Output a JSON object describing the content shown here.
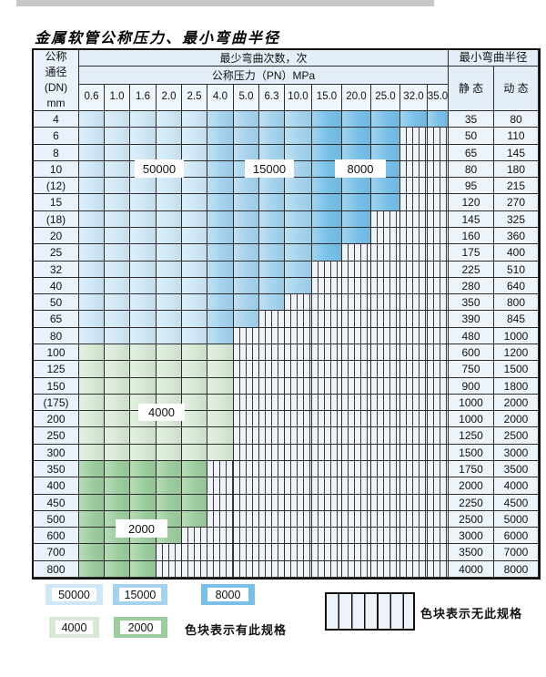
{
  "title": "金属软管公称压力、最小弯曲半径",
  "header": {
    "dn_lines": [
      "公称",
      "通径",
      "(DN)",
      "mm"
    ],
    "cycles_title": "最少弯曲次数，次",
    "pressure_title": "公称压力（PN）MPa",
    "radius_title": "最小弯曲半径",
    "static_label": "静 态",
    "dynamic_label": "动 态"
  },
  "columns": [
    "0.6",
    "1.0",
    "1.6",
    "2.0",
    "2.5",
    "4.0",
    "5.0",
    "6.3",
    "10.0",
    "15.0",
    "20.0",
    "25.0",
    "32.0",
    "35.0"
  ],
  "blue_col_zones": {
    "c50000": [
      0,
      4
    ],
    "c15000": [
      5,
      8
    ],
    "c8000": [
      9,
      13
    ]
  },
  "region_labels": [
    "50000",
    "15000",
    "8000",
    "4000",
    "2000"
  ],
  "rows": [
    {
      "dn": "4",
      "static": "35",
      "dynamic": "80",
      "cols": 14,
      "zone": "blue"
    },
    {
      "dn": "6",
      "static": "50",
      "dynamic": "110",
      "cols": 12,
      "zone": "blue"
    },
    {
      "dn": "8",
      "static": "65",
      "dynamic": "145",
      "cols": 12,
      "zone": "blue"
    },
    {
      "dn": "10",
      "static": "80",
      "dynamic": "180",
      "cols": 12,
      "zone": "blue"
    },
    {
      "dn": "(12)",
      "static": "95",
      "dynamic": "215",
      "cols": 12,
      "zone": "blue"
    },
    {
      "dn": "15",
      "static": "120",
      "dynamic": "270",
      "cols": 12,
      "zone": "blue"
    },
    {
      "dn": "(18)",
      "static": "145",
      "dynamic": "325",
      "cols": 11,
      "zone": "blue"
    },
    {
      "dn": "20",
      "static": "160",
      "dynamic": "360",
      "cols": 11,
      "zone": "blue"
    },
    {
      "dn": "25",
      "static": "175",
      "dynamic": "400",
      "cols": 10,
      "zone": "blue"
    },
    {
      "dn": "32",
      "static": "225",
      "dynamic": "510",
      "cols": 9,
      "zone": "blue"
    },
    {
      "dn": "40",
      "static": "280",
      "dynamic": "640",
      "cols": 9,
      "zone": "blue"
    },
    {
      "dn": "50",
      "static": "350",
      "dynamic": "800",
      "cols": 8,
      "zone": "blue"
    },
    {
      "dn": "65",
      "static": "390",
      "dynamic": "845",
      "cols": 7,
      "zone": "blue"
    },
    {
      "dn": "80",
      "static": "480",
      "dynamic": "1000",
      "cols": 6,
      "zone": "blue"
    },
    {
      "dn": "100",
      "static": "600",
      "dynamic": "1200",
      "cols": 6,
      "zone": "4000"
    },
    {
      "dn": "125",
      "static": "750",
      "dynamic": "1500",
      "cols": 6,
      "zone": "4000"
    },
    {
      "dn": "150",
      "static": "900",
      "dynamic": "1800",
      "cols": 6,
      "zone": "4000"
    },
    {
      "dn": "(175)",
      "static": "1000",
      "dynamic": "2000",
      "cols": 6,
      "zone": "4000"
    },
    {
      "dn": "200",
      "static": "1000",
      "dynamic": "2000",
      "cols": 6,
      "zone": "4000"
    },
    {
      "dn": "250",
      "static": "1250",
      "dynamic": "2500",
      "cols": 6,
      "zone": "4000"
    },
    {
      "dn": "300",
      "static": "1500",
      "dynamic": "3000",
      "cols": 6,
      "zone": "4000"
    },
    {
      "dn": "350",
      "static": "1750",
      "dynamic": "3500",
      "cols": 5,
      "zone": "2000"
    },
    {
      "dn": "400",
      "static": "2000",
      "dynamic": "4000",
      "cols": 5,
      "zone": "2000"
    },
    {
      "dn": "450",
      "static": "2250",
      "dynamic": "4500",
      "cols": 5,
      "zone": "2000"
    },
    {
      "dn": "500",
      "static": "2500",
      "dynamic": "5000",
      "cols": 5,
      "zone": "2000"
    },
    {
      "dn": "600",
      "static": "3000",
      "dynamic": "6000",
      "cols": 4,
      "zone": "2000"
    },
    {
      "dn": "700",
      "static": "3500",
      "dynamic": "7000",
      "cols": 3,
      "zone": "2000"
    },
    {
      "dn": "800",
      "static": "4000",
      "dynamic": "8000",
      "cols": 3,
      "zone": "2000"
    }
  ],
  "legend": {
    "items": [
      {
        "label": "50000",
        "color_key": "c50000"
      },
      {
        "label": "15000",
        "color_key": "c15000"
      },
      {
        "label": "8000",
        "color_key": "c8000"
      },
      {
        "label": "4000",
        "color_key": "c4000"
      },
      {
        "label": "2000",
        "color_key": "c2000"
      }
    ],
    "has_spec_text": "色块表示有此规格",
    "no_spec_text": "色块表示无此规格"
  },
  "colors": {
    "c50000": "#cfe7f6",
    "c15000": "#a5d3ee",
    "c8000": "#79c0e8",
    "c4000": "#d7e9d5",
    "c2000": "#9ccd9e",
    "hatch_bg": "#edf3f9",
    "grid": "#2d2d2d"
  }
}
